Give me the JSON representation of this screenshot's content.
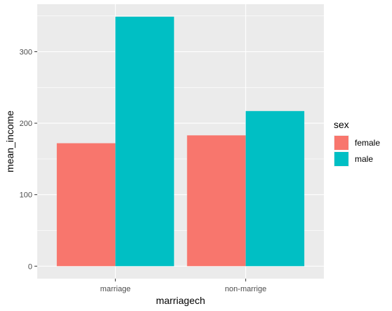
{
  "chart_data": {
    "type": "bar",
    "categories": [
      "marriage",
      "non-marrige"
    ],
    "series": [
      {
        "name": "female",
        "values": [
          172,
          183
        ],
        "color": "#F8766D"
      },
      {
        "name": "male",
        "values": [
          349,
          217
        ],
        "color": "#00BFC4"
      }
    ],
    "xlabel": "marriagech",
    "ylabel": "mean_income",
    "ylim": [
      -17.45,
      366.45
    ],
    "yticks": [
      0,
      100,
      200,
      300
    ],
    "grid": true,
    "legend": {
      "title": "sex",
      "placement": "right"
    },
    "panel_background": "#EBEBEB",
    "grid_color": "#FFFFFF"
  }
}
